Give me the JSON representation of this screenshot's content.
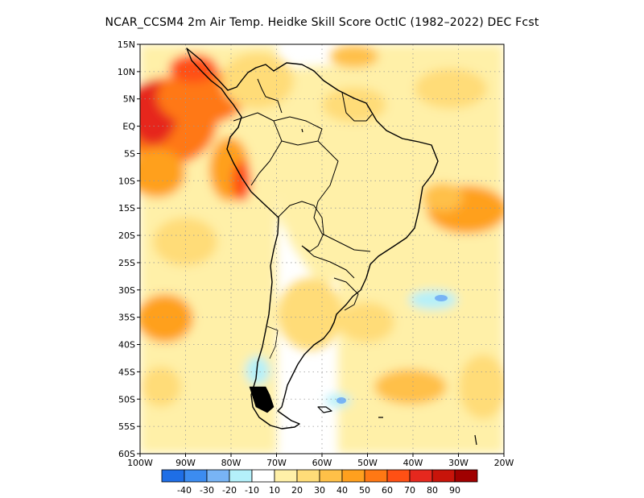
{
  "title": "NCAR_CCSM4  2m Air Temp. Heidke Skill Score OctIC (1982–2022) DEC Fcst",
  "axes": {
    "lat_labels": [
      "15N",
      "10N",
      "5N",
      "EQ",
      "5S",
      "10S",
      "15S",
      "20S",
      "25S",
      "30S",
      "35S",
      "40S",
      "45S",
      "50S",
      "55S",
      "60S"
    ],
    "lon_labels": [
      "100W",
      "90W",
      "80W",
      "70W",
      "60W",
      "50W",
      "40W",
      "30W",
      "20W"
    ]
  },
  "colorbar": {
    "colors": [
      "#1e6ee6",
      "#3c8cf0",
      "#78b4f5",
      "#b4f0fa",
      "#ffffff",
      "#fff0a8",
      "#ffdc78",
      "#ffc048",
      "#ffa01e",
      "#ff7814",
      "#ff5014",
      "#e6281e",
      "#c8140a",
      "#a00000"
    ],
    "tick_labels": [
      "-40",
      "-30",
      "-20",
      "-10",
      "10",
      "20",
      "30",
      "40",
      "50",
      "60",
      "70",
      "80",
      "90"
    ]
  },
  "colors": {
    "frame": "#000000",
    "grid": "#999999",
    "coast": "#000000"
  }
}
